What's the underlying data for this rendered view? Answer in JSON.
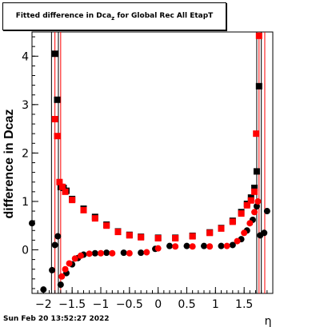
{
  "title": {
    "prefix": "Fitted difference in Dca",
    "subscript": "z",
    "suffix": " for Global Rec All EtapT"
  },
  "footer": {
    "timestamp": "Sun Feb 20 13:52:27 2022"
  },
  "chart_data": {
    "type": "scatter",
    "title": "Fitted difference in Dcaz for Global Rec All EtapT",
    "xlabel": "η",
    "ylabel": "difference in Dcaz",
    "xlim": [
      -2.2,
      2.0
    ],
    "ylim": [
      -0.9,
      4.5
    ],
    "xticks": [
      -2,
      -1.5,
      -1,
      -0.5,
      0,
      0.5,
      1,
      1.5
    ],
    "xtick_labels": [
      "−2",
      "−1.5",
      "−1",
      "−0.5",
      "0",
      "0.5",
      "1",
      "1.5"
    ],
    "yticks": [
      0,
      1,
      2,
      3,
      4
    ],
    "grid": false,
    "colors": {
      "black_series": "#000000",
      "red_series": "#ff0000"
    },
    "series": [
      {
        "marker": "square",
        "color": "#000000",
        "points": [
          [
            -1.8,
            4.05
          ],
          [
            -1.76,
            3.1
          ],
          [
            -1.7,
            1.3
          ],
          [
            -1.65,
            1.28
          ],
          [
            -1.6,
            1.22
          ],
          [
            -1.5,
            1.05
          ],
          [
            -1.3,
            0.85
          ],
          [
            -1.1,
            0.68
          ],
          [
            -0.9,
            0.52
          ],
          [
            -0.7,
            0.38
          ],
          [
            -0.5,
            0.31
          ],
          [
            -0.3,
            0.27
          ],
          [
            0,
            0.25
          ],
          [
            0.3,
            0.25
          ],
          [
            0.6,
            0.29
          ],
          [
            0.9,
            0.36
          ],
          [
            1.1,
            0.45
          ],
          [
            1.3,
            0.6
          ],
          [
            1.45,
            0.78
          ],
          [
            1.55,
            0.95
          ],
          [
            1.62,
            1.08
          ],
          [
            1.68,
            1.28
          ],
          [
            1.72,
            1.62
          ],
          [
            1.76,
            3.38
          ]
        ]
      },
      {
        "marker": "circle",
        "color": "#000000",
        "points": [
          [
            -2.2,
            0.55
          ],
          [
            -2.0,
            -0.82
          ],
          [
            -1.85,
            -0.42
          ],
          [
            -1.8,
            0.1
          ],
          [
            -1.75,
            0.28
          ],
          [
            -1.7,
            -0.72
          ],
          [
            -1.6,
            -0.48
          ],
          [
            -1.5,
            -0.3
          ],
          [
            -1.4,
            -0.17
          ],
          [
            -1.3,
            -0.1
          ],
          [
            -1.1,
            -0.07
          ],
          [
            -0.9,
            -0.06
          ],
          [
            -0.6,
            -0.06
          ],
          [
            -0.3,
            -0.06
          ],
          [
            -0.05,
            0.02
          ],
          [
            0.2,
            0.08
          ],
          [
            0.5,
            0.08
          ],
          [
            0.8,
            0.08
          ],
          [
            1.1,
            0.08
          ],
          [
            1.3,
            0.1
          ],
          [
            1.45,
            0.22
          ],
          [
            1.55,
            0.4
          ],
          [
            1.65,
            0.62
          ],
          [
            1.72,
            0.9
          ],
          [
            1.78,
            0.3
          ],
          [
            1.85,
            0.35
          ],
          [
            1.9,
            0.8
          ]
        ]
      },
      {
        "marker": "square",
        "color": "#ff0000",
        "points": [
          [
            -1.8,
            2.7
          ],
          [
            -1.76,
            2.35
          ],
          [
            -1.72,
            1.4
          ],
          [
            -1.67,
            1.3
          ],
          [
            -1.62,
            1.2
          ],
          [
            -1.5,
            1.03
          ],
          [
            -1.3,
            0.82
          ],
          [
            -1.1,
            0.65
          ],
          [
            -0.9,
            0.5
          ],
          [
            -0.7,
            0.37
          ],
          [
            -0.5,
            0.3
          ],
          [
            -0.3,
            0.26
          ],
          [
            0,
            0.24
          ],
          [
            0.3,
            0.24
          ],
          [
            0.6,
            0.28
          ],
          [
            0.9,
            0.35
          ],
          [
            1.1,
            0.44
          ],
          [
            1.3,
            0.58
          ],
          [
            1.45,
            0.75
          ],
          [
            1.55,
            0.92
          ],
          [
            1.62,
            1.02
          ],
          [
            1.68,
            1.2
          ],
          [
            1.71,
            2.4
          ],
          [
            1.76,
            4.42
          ]
        ]
      },
      {
        "marker": "circle",
        "color": "#ff0000",
        "points": [
          [
            -1.68,
            -0.55
          ],
          [
            -1.62,
            -0.4
          ],
          [
            -1.55,
            -0.28
          ],
          [
            -1.45,
            -0.18
          ],
          [
            -1.35,
            -0.12
          ],
          [
            -1.2,
            -0.08
          ],
          [
            -1.0,
            -0.07
          ],
          [
            -0.8,
            -0.07
          ],
          [
            -0.5,
            -0.07
          ],
          [
            -0.2,
            -0.05
          ],
          [
            0.0,
            0.03
          ],
          [
            0.3,
            0.07
          ],
          [
            0.6,
            0.07
          ],
          [
            0.9,
            0.07
          ],
          [
            1.2,
            0.08
          ],
          [
            1.38,
            0.18
          ],
          [
            1.5,
            0.35
          ],
          [
            1.6,
            0.55
          ],
          [
            1.68,
            0.78
          ],
          [
            1.74,
            1.0
          ]
        ]
      }
    ],
    "error_bar_x": [
      -1.86,
      -1.8,
      -1.74,
      -1.7,
      1.72,
      1.76,
      1.8,
      1.86
    ]
  }
}
